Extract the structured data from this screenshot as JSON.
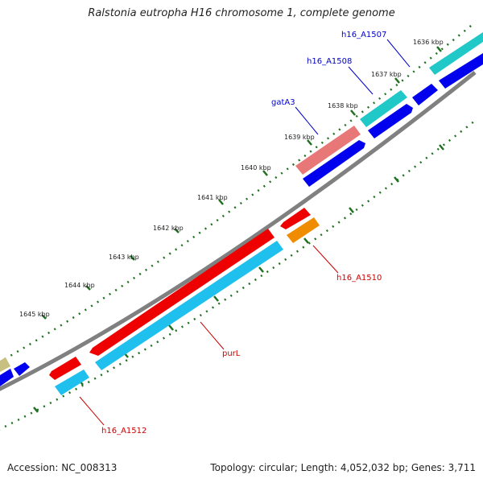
{
  "title": "Ralstonia eutropha H16 chromosome 1, complete genome",
  "footer": {
    "accession": "Accession: NC_008313",
    "summary": "Topology: circular; Length: 4,052,032 bp; Genes: 3,711"
  },
  "ticks": [
    {
      "label": "1636 kbp",
      "pos": 1636
    },
    {
      "label": "1637 kbp",
      "pos": 1637
    },
    {
      "label": "1638 kbp",
      "pos": 1638
    },
    {
      "label": "1639 kbp",
      "pos": 1639
    },
    {
      "label": "1640 kbp",
      "pos": 1640
    },
    {
      "label": "1641 kbp",
      "pos": 1641
    },
    {
      "label": "1642 kbp",
      "pos": 1642
    },
    {
      "label": "1643 kbp",
      "pos": 1643
    },
    {
      "label": "1644 kbp",
      "pos": 1644
    },
    {
      "label": "1645 kbp",
      "pos": 1645
    }
  ],
  "gene_labels": [
    {
      "text": "h16_A1507",
      "color": "#0000cc"
    },
    {
      "text": "h16_A1508",
      "color": "#0000cc"
    },
    {
      "text": "gatA3",
      "color": "#0000cc"
    },
    {
      "text": "h16_A1510",
      "color": "#cc0000"
    },
    {
      "text": "purL",
      "color": "#cc0000"
    },
    {
      "text": "h16_A1512",
      "color": "#cc0000"
    }
  ],
  "colors": {
    "backbone": "#808080",
    "cds_forward": "#0000ee",
    "gene_forward": "#20c8c8",
    "cds_reverse": "#ee0000",
    "gene_reverse": "#20c0ee",
    "gatA3_gene": "#e87878",
    "h16_A1510_gene": "#f08c00",
    "unknown_feature": "#c8c080",
    "tick_color": "#207020",
    "forward_label": "#0000cc",
    "reverse_label": "#cc0000"
  }
}
